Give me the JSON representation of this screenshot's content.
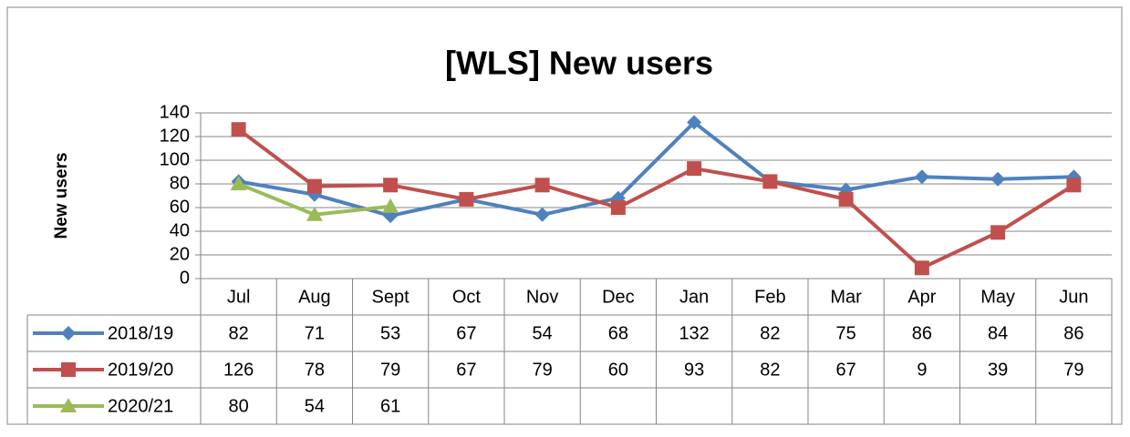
{
  "chart_data": {
    "type": "line",
    "title": "[WLS] New users",
    "y_label": "New users",
    "categories": [
      "Jul",
      "Aug",
      "Sept",
      "Oct",
      "Nov",
      "Dec",
      "Jan",
      "Feb",
      "Mar",
      "Apr",
      "May",
      "Jun"
    ],
    "series": [
      {
        "name": "2018/19",
        "color": "#4f81bd",
        "marker": "diamond",
        "values": [
          82,
          71,
          53,
          67,
          54,
          68,
          132,
          82,
          75,
          86,
          84,
          86
        ]
      },
      {
        "name": "2019/20",
        "color": "#c0504d",
        "marker": "square",
        "values": [
          126,
          78,
          79,
          67,
          79,
          60,
          93,
          82,
          67,
          9,
          39,
          79
        ]
      },
      {
        "name": "2020/21",
        "color": "#9bbb59",
        "marker": "triangle",
        "values": [
          80,
          54,
          61,
          null,
          null,
          null,
          null,
          null,
          null,
          null,
          null,
          null
        ]
      }
    ],
    "ylim": [
      0,
      140
    ],
    "yticks": [
      0,
      20,
      40,
      60,
      80,
      100,
      120,
      140
    ],
    "grid": true,
    "data_table": true
  }
}
